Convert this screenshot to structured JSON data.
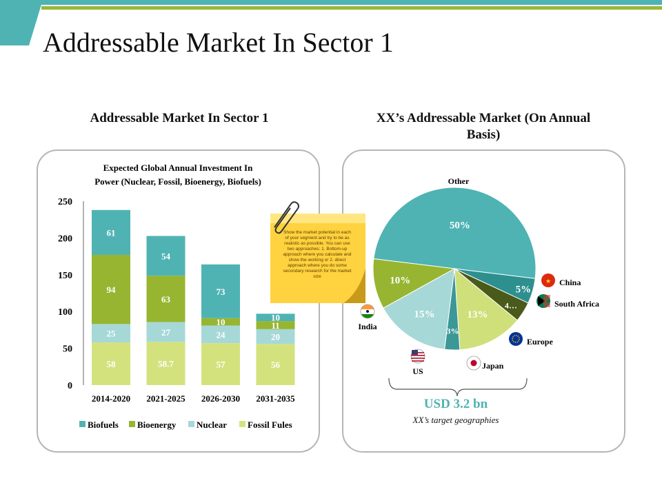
{
  "slide_title": "Addressable Market In Sector 1",
  "left_section": {
    "heading": "Addressable Market In Sector 1"
  },
  "right_section": {
    "heading_line1": "XX’s Addressable Market (On Annual",
    "heading_line2": "Basis)",
    "sticky_note": "Show the market potential in each of your segment and try to be as realistic as possible. You can use two approaches: 1. Bottom-up approach where you calculate and show the working or 2. direct approach where you do some secondary research for the market size",
    "total_value": "USD 3.2 bn",
    "total_caption": "XX’s target geographies"
  },
  "chart_data": [
    {
      "type": "bar",
      "stacked": true,
      "title_line1": "Expected Global Annual Investment In",
      "title_line2": "Power (Nuclear, Fossil, Bioenergy, Biofuels)",
      "categories": [
        "2014-2020",
        "2021-2025",
        "2026-2030",
        "2031-2035"
      ],
      "series": [
        {
          "name": "Fossil Fules",
          "color": "#d4e27e",
          "values": [
            58,
            58.7,
            57,
            56
          ],
          "labels": [
            "58",
            "58.7",
            "57",
            "56"
          ]
        },
        {
          "name": "Nuclear",
          "color": "#a6d8d8",
          "values": [
            25,
            27,
            24,
            20
          ],
          "labels": [
            "25",
            "27",
            "24",
            "20"
          ]
        },
        {
          "name": "Bioenergy",
          "color": "#97b531",
          "values": [
            94,
            63,
            10,
            11
          ],
          "labels": [
            "94",
            "63",
            "10",
            "11"
          ]
        },
        {
          "name": "Biofuels",
          "color": "#4fb3b3",
          "values": [
            61,
            54,
            73,
            10
          ],
          "labels": [
            "61",
            "54",
            "73",
            "10"
          ]
        }
      ],
      "legend_order": [
        "Biofuels",
        "Bioenergy",
        "Nuclear",
        "Fossil Fules"
      ],
      "ylim": [
        0,
        250
      ],
      "yticks": [
        "0",
        "50",
        "100",
        "150",
        "200",
        "250"
      ],
      "xlabel": "",
      "ylabel": "",
      "legend_position": "bottom"
    },
    {
      "type": "pie",
      "slices": [
        {
          "name": "Other",
          "value": 50,
          "label": "50%",
          "color": "#4fb3b3"
        },
        {
          "name": "China",
          "value": 5,
          "label": "5%",
          "color": "#2e8f8f"
        },
        {
          "name": "South Africa",
          "value": 4,
          "label": "4…",
          "color": "#4a5a1a"
        },
        {
          "name": "Europe",
          "value": 13,
          "label": "13%",
          "color": "#cfe07a"
        },
        {
          "name": "Japan",
          "value": 3,
          "label": "3%",
          "color": "#3c9797"
        },
        {
          "name": "US",
          "value": 15,
          "label": "15%",
          "color": "#a6d8d8"
        },
        {
          "name": "India",
          "value": 10,
          "label": "10%",
          "color": "#97b531"
        }
      ],
      "country_labels": {
        "other": "Other",
        "china": "China",
        "south_africa": "South Africa",
        "europe": "Europe",
        "japan": "Japan",
        "us": "US",
        "india": "India"
      }
    }
  ]
}
